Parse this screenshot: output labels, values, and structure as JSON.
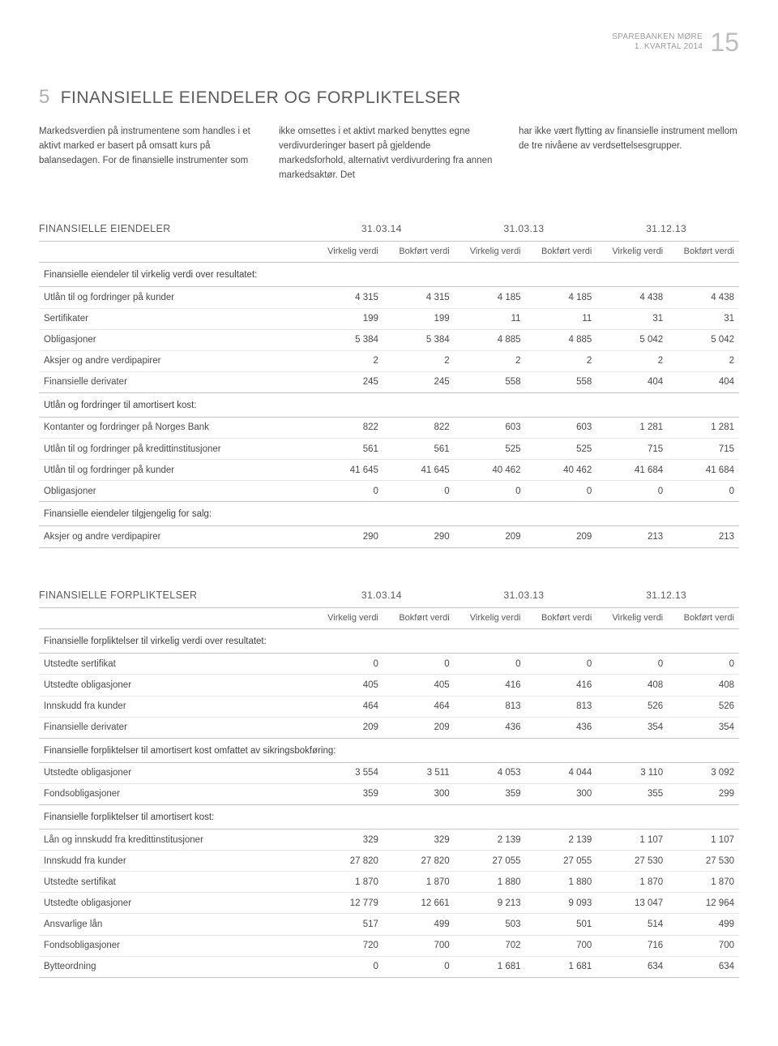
{
  "header": {
    "brand_l1": "SPAREBANKEN MØRE",
    "brand_l2": "1. KVARTAL 2014",
    "page_no": "15"
  },
  "title": {
    "number": "5",
    "text": "FINANSIELLE EIENDELER OG FORPLIKTELSER"
  },
  "intro": {
    "c1": "Markedsverdien på instrumentene som handles i et aktivt marked er basert på omsatt kurs på balansedagen. For de finansielle instrumenter som",
    "c2": "ikke omsettes i et aktivt marked benyttes egne verdivurderinger basert på gjeldende markedsforhold, alternativt verdivurdering fra annen markedsaktør. Det",
    "c3": "har ikke vært flytting av finansielle instrument mellom de tre nivåene av verdsettelsesgrupper."
  },
  "t1": {
    "head": "FINANSIELLE EIENDELER",
    "dates": [
      "31.03.14",
      "31.03.13",
      "31.12.13"
    ],
    "sub_v": "Virkelig verdi",
    "sub_b": "Bokført verdi",
    "s1": "Finansielle eiendeler til virkelig verdi over resultatet:",
    "r1": {
      "l": "Utlån til og fordringer på kunder",
      "v": [
        "4 315",
        "4 315",
        "4 185",
        "4 185",
        "4 438",
        "4 438"
      ]
    },
    "r2": {
      "l": "Sertifikater",
      "v": [
        "199",
        "199",
        "11",
        "11",
        "31",
        "31"
      ]
    },
    "r3": {
      "l": "Obligasjoner",
      "v": [
        "5 384",
        "5 384",
        "4 885",
        "4 885",
        "5 042",
        "5 042"
      ]
    },
    "r4": {
      "l": "Aksjer og andre verdipapirer",
      "v": [
        "2",
        "2",
        "2",
        "2",
        "2",
        "2"
      ]
    },
    "r5": {
      "l": "Finansielle derivater",
      "v": [
        "245",
        "245",
        "558",
        "558",
        "404",
        "404"
      ]
    },
    "s2": "Utlån og fordringer til amortisert kost:",
    "r6": {
      "l": "Kontanter og fordringer på Norges Bank",
      "v": [
        "822",
        "822",
        "603",
        "603",
        "1 281",
        "1 281"
      ]
    },
    "r7": {
      "l": "Utlån til og fordringer på kredittinstitusjoner",
      "v": [
        "561",
        "561",
        "525",
        "525",
        "715",
        "715"
      ]
    },
    "r8": {
      "l": "Utlån til og fordringer på kunder",
      "v": [
        "41 645",
        "41 645",
        "40 462",
        "40 462",
        "41 684",
        "41 684"
      ]
    },
    "r9": {
      "l": "Obligasjoner",
      "v": [
        "0",
        "0",
        "0",
        "0",
        "0",
        "0"
      ]
    },
    "s3": "Finansielle eiendeler tilgjengelig for salg:",
    "r10": {
      "l": "Aksjer og andre verdipapirer",
      "v": [
        "290",
        "290",
        "209",
        "209",
        "213",
        "213"
      ]
    }
  },
  "t2": {
    "head": "FINANSIELLE FORPLIKTELSER",
    "dates": [
      "31.03.14",
      "31.03.13",
      "31.12.13"
    ],
    "sub_v": "Virkelig verdi",
    "sub_b": "Bokført verdi",
    "s1": "Finansielle forpliktelser til virkelig verdi over resultatet:",
    "r1": {
      "l": "Utstedte sertifikat",
      "v": [
        "0",
        "0",
        "0",
        "0",
        "0",
        "0"
      ]
    },
    "r2": {
      "l": "Utstedte obligasjoner",
      "v": [
        "405",
        "405",
        "416",
        "416",
        "408",
        "408"
      ]
    },
    "r3": {
      "l": "Innskudd fra kunder",
      "v": [
        "464",
        "464",
        "813",
        "813",
        "526",
        "526"
      ]
    },
    "r4": {
      "l": "Finansielle derivater",
      "v": [
        "209",
        "209",
        "436",
        "436",
        "354",
        "354"
      ]
    },
    "s2": "Finansielle forpliktelser til amortisert kost omfattet av sikringsbokføring:",
    "r5": {
      "l": "Utstedte obligasjoner",
      "v": [
        "3 554",
        "3 511",
        "4 053",
        "4 044",
        "3 110",
        "3 092"
      ]
    },
    "r6": {
      "l": "Fondsobligasjoner",
      "v": [
        "359",
        "300",
        "359",
        "300",
        "355",
        "299"
      ]
    },
    "s3": "Finansielle forpliktelser til amortisert kost:",
    "r7": {
      "l": "Lån og innskudd fra kredittinstitusjoner",
      "v": [
        "329",
        "329",
        "2 139",
        "2 139",
        "1 107",
        "1 107"
      ]
    },
    "r8": {
      "l": "Innskudd fra kunder",
      "v": [
        "27 820",
        "27 820",
        "27 055",
        "27 055",
        "27 530",
        "27 530"
      ]
    },
    "r9": {
      "l": "Utstedte sertifikat",
      "v": [
        "1 870",
        "1 870",
        "1 880",
        "1 880",
        "1 870",
        "1 870"
      ]
    },
    "r10": {
      "l": "Utstedte obligasjoner",
      "v": [
        "12 779",
        "12 661",
        "9 213",
        "9 093",
        "13 047",
        "12 964"
      ]
    },
    "r11": {
      "l": "Ansvarlige lån",
      "v": [
        "517",
        "499",
        "503",
        "501",
        "514",
        "499"
      ]
    },
    "r12": {
      "l": "Fondsobligasjoner",
      "v": [
        "720",
        "700",
        "702",
        "700",
        "716",
        "700"
      ]
    },
    "r13": {
      "l": "Bytteordning",
      "v": [
        "0",
        "0",
        "1 681",
        "1 681",
        "634",
        "634"
      ]
    }
  }
}
